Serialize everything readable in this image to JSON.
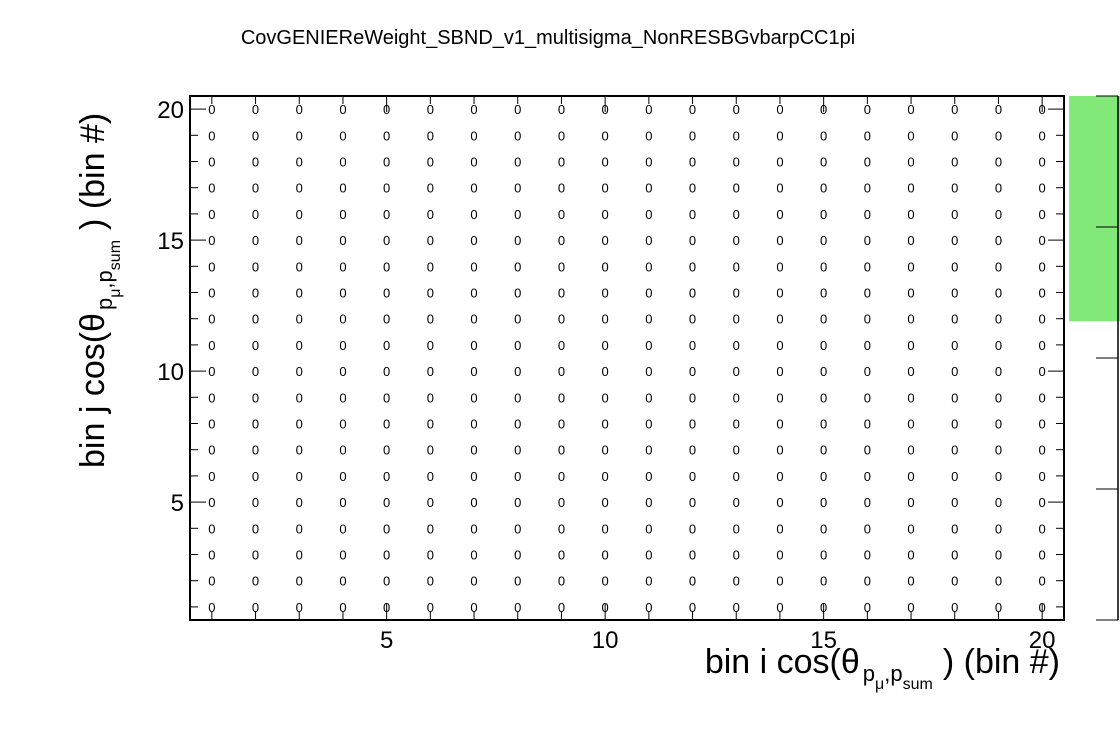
{
  "chart_data": {
    "type": "heatmap",
    "title": "CovGENIEReWeight_SBND_v1_multisigma_NonRESBGvbarpCC1pi",
    "xlabel": {
      "prefix": "bin i cos(θ",
      "subscript_a": "p",
      "subscript_a_sub": "μ",
      "subscript_sep": ",",
      "subscript_b": "p",
      "subscript_b_sub": "sum",
      "suffix": ") (bin #)"
    },
    "ylabel": {
      "prefix": "bin j cos(θ",
      "subscript_a": "p",
      "subscript_a_sub": "μ",
      "subscript_sep": ",",
      "subscript_b": "p",
      "subscript_b_sub": "sum",
      "suffix": ") (bin #)"
    },
    "x_bins": [
      1,
      20
    ],
    "y_bins": [
      1,
      20
    ],
    "xlim": [
      0.5,
      20.5
    ],
    "ylim": [
      0.5,
      20.5
    ],
    "x_ticks": [
      "5",
      "10",
      "15",
      "20"
    ],
    "y_ticks": [
      "5",
      "10",
      "15",
      "20"
    ],
    "cell_value": "0",
    "colorbar": {
      "fill_color": "#82e878",
      "fill_fraction": [
        0.57,
        1.0
      ]
    }
  }
}
